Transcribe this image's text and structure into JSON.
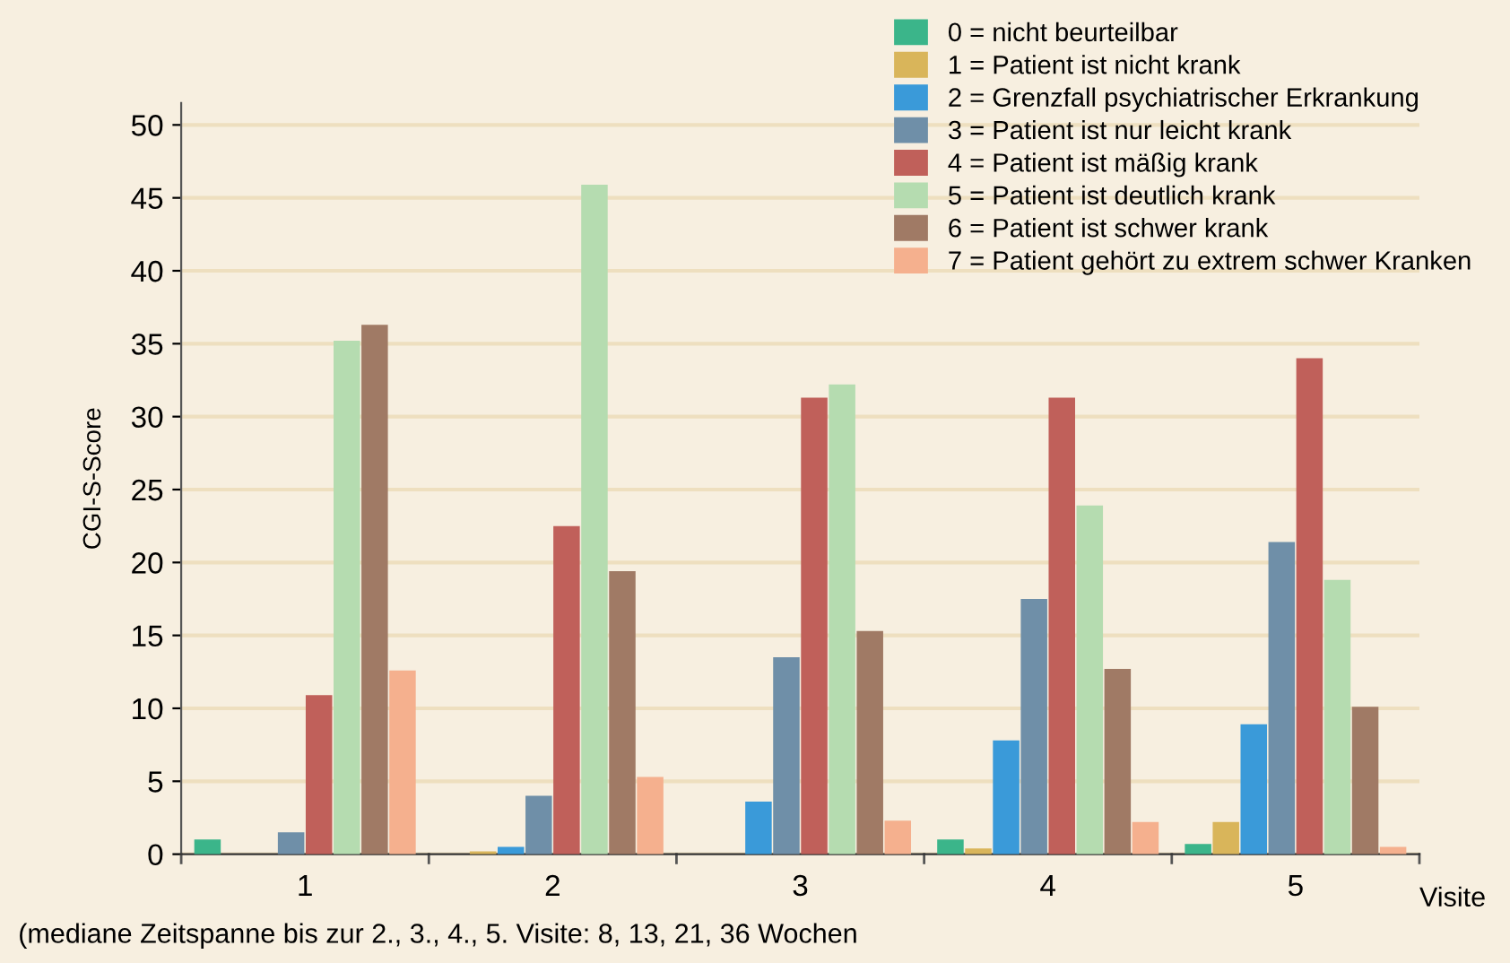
{
  "chart_data": {
    "type": "bar",
    "xlabel": "Visite",
    "ylabel": "CGI-S-Score",
    "categories": [
      "1",
      "2",
      "3",
      "4",
      "5"
    ],
    "series": [
      {
        "name": "0 = nicht beurteilbar",
        "color": "#3bb58a",
        "values": [
          1.0,
          0,
          0,
          1.0,
          0.7
        ]
      },
      {
        "name": "1 = Patient ist nicht krank",
        "color": "#d9b55a",
        "values": [
          0,
          0.2,
          0,
          0.4,
          2.2
        ]
      },
      {
        "name": "2 = Grenzfall psychiatrischer Erkrankung",
        "color": "#3a9ad9",
        "values": [
          0,
          0.5,
          3.6,
          7.8,
          8.9
        ]
      },
      {
        "name": "3 = Patient ist nur leicht krank",
        "color": "#6f8fa8",
        "values": [
          1.5,
          4.0,
          13.5,
          17.5,
          21.4
        ]
      },
      {
        "name": "4 = Patient ist mäßig krank",
        "color": "#c0605a",
        "values": [
          10.9,
          22.5,
          31.3,
          31.3,
          34.0
        ]
      },
      {
        "name": "5 = Patient ist deutlich krank",
        "color": "#b5dcb0",
        "values": [
          35.2,
          45.9,
          32.2,
          23.9,
          18.8
        ]
      },
      {
        "name": "6 = Patient ist schwer krank",
        "color": "#a07a65",
        "values": [
          36.3,
          19.4,
          15.3,
          12.7,
          10.1
        ]
      },
      {
        "name": "7 = Patient gehört zu extrem schwer Kranken",
        "color": "#f5b08e",
        "values": [
          12.6,
          5.3,
          2.3,
          2.2,
          0.5
        ]
      }
    ],
    "ylim": [
      0,
      51.5
    ],
    "yticks": [
      0,
      5,
      10,
      15,
      20,
      25,
      30,
      35,
      40,
      45,
      50
    ],
    "grid": "y",
    "legend": "top right",
    "annotations": [
      "(mediane Zeitspanne bis zur 2., 3., 4., 5. Visite: 8, 13, 21, 36 Wochen"
    ]
  }
}
